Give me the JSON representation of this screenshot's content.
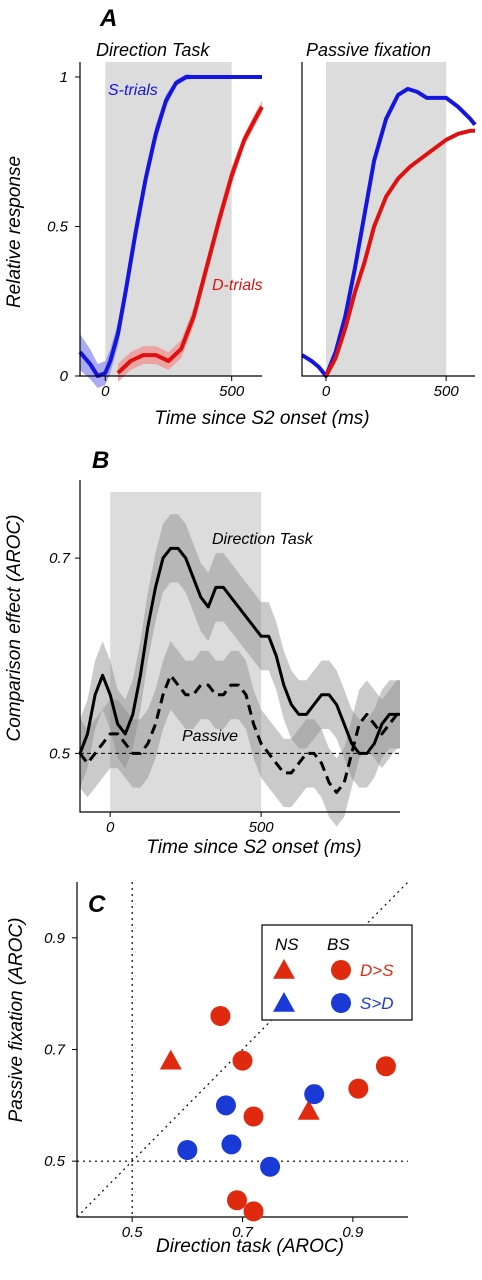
{
  "chart_data": [
    {
      "panel": "A",
      "type": "line",
      "title": "Direction Task",
      "xlabel": "Time since S2 onset  (ms)",
      "ylabel": "Relative response",
      "xlim": [
        -100,
        620
      ],
      "ylim": [
        0,
        1.05
      ],
      "xticks": [
        0,
        500
      ],
      "xtick_labels": [
        "0",
        "500"
      ],
      "yticks": [
        0,
        0.5,
        1
      ],
      "ytick_labels": [
        "0",
        "0.5",
        "1"
      ],
      "shaded_interval": [
        0,
        500
      ],
      "series": [
        {
          "name": "S-trials",
          "color": "#1515e0",
          "band_color": "#8f8ff0",
          "x": [
            -100,
            -60,
            -30,
            0,
            20,
            50,
            80,
            120,
            160,
            200,
            240,
            280,
            320,
            360,
            400,
            450,
            500,
            560,
            620
          ],
          "y": [
            0.08,
            0.04,
            0.0,
            0.01,
            0.05,
            0.14,
            0.28,
            0.48,
            0.66,
            0.81,
            0.92,
            0.98,
            1.0,
            1.0,
            1.0,
            1.0,
            1.0,
            1.0,
            1.0
          ],
          "band": [
            0.06,
            0.05,
            0.04,
            0.04,
            0.04,
            0.04,
            0.04,
            0.04,
            0.03,
            0.03,
            0.02,
            0.01,
            0.01,
            0.005,
            0.005,
            0.005,
            0.005,
            0.005,
            0.005
          ]
        },
        {
          "name": "D-trials",
          "color": "#e01010",
          "band_color": "#f09090",
          "x": [
            50,
            100,
            150,
            200,
            250,
            300,
            350,
            400,
            450,
            500,
            550,
            600,
            620
          ],
          "y": [
            0.01,
            0.05,
            0.07,
            0.07,
            0.05,
            0.09,
            0.2,
            0.36,
            0.52,
            0.67,
            0.79,
            0.87,
            0.9
          ],
          "band": [
            0.03,
            0.03,
            0.03,
            0.03,
            0.03,
            0.03,
            0.03,
            0.03,
            0.03,
            0.03,
            0.02,
            0.02,
            0.02
          ]
        }
      ]
    },
    {
      "panel": "A",
      "type": "line",
      "title": "Passive fixation",
      "xlim": [
        -100,
        620
      ],
      "ylim": [
        0,
        1.05
      ],
      "xticks": [
        0,
        500
      ],
      "xtick_labels": [
        "0",
        "500"
      ],
      "shaded_interval": [
        0,
        500
      ],
      "series": [
        {
          "color": "#1515e0",
          "x": [
            -100,
            -60,
            -30,
            0,
            40,
            80,
            120,
            160,
            200,
            250,
            300,
            340,
            380,
            420,
            460,
            500,
            550,
            600,
            620
          ],
          "y": [
            0.07,
            0.05,
            0.03,
            0.0,
            0.08,
            0.2,
            0.36,
            0.54,
            0.72,
            0.86,
            0.94,
            0.96,
            0.95,
            0.93,
            0.93,
            0.93,
            0.9,
            0.86,
            0.84
          ]
        },
        {
          "color": "#e01010",
          "x": [
            0,
            40,
            80,
            120,
            160,
            200,
            250,
            300,
            350,
            400,
            450,
            500,
            550,
            600,
            620
          ],
          "y": [
            0.0,
            0.06,
            0.16,
            0.28,
            0.38,
            0.5,
            0.6,
            0.66,
            0.7,
            0.73,
            0.76,
            0.79,
            0.81,
            0.82,
            0.82
          ]
        }
      ]
    },
    {
      "panel": "B",
      "type": "line",
      "xlabel": "Time since S2 onset  (ms)",
      "ylabel": "Comparison effect (AROC)",
      "xlim": [
        -100,
        960
      ],
      "ylim": [
        0.44,
        0.78
      ],
      "xticks": [
        0,
        500
      ],
      "xtick_labels": [
        "0",
        "500"
      ],
      "yticks": [
        0.5,
        0.7
      ],
      "ytick_labels": [
        "0.5",
        "0.7"
      ],
      "shaded_interval": [
        0,
        500
      ],
      "reference_line": 0.5,
      "series": [
        {
          "name": "Direction Task",
          "style": "solid",
          "x": [
            -100,
            -75,
            -50,
            -25,
            0,
            25,
            50,
            75,
            100,
            125,
            150,
            175,
            200,
            225,
            250,
            275,
            300,
            325,
            350,
            375,
            400,
            425,
            450,
            475,
            500,
            525,
            550,
            575,
            600,
            625,
            650,
            675,
            700,
            725,
            750,
            775,
            800,
            825,
            850,
            875,
            900,
            925,
            950,
            960
          ],
          "y": [
            0.5,
            0.52,
            0.56,
            0.58,
            0.56,
            0.53,
            0.52,
            0.54,
            0.58,
            0.63,
            0.67,
            0.7,
            0.71,
            0.71,
            0.7,
            0.68,
            0.66,
            0.65,
            0.67,
            0.67,
            0.66,
            0.65,
            0.64,
            0.63,
            0.62,
            0.62,
            0.6,
            0.57,
            0.55,
            0.54,
            0.54,
            0.55,
            0.56,
            0.56,
            0.55,
            0.53,
            0.51,
            0.5,
            0.5,
            0.51,
            0.53,
            0.54,
            0.54,
            0.54
          ],
          "band": 0.035
        },
        {
          "name": "Passive",
          "style": "dashed",
          "x": [
            -100,
            -75,
            -50,
            -25,
            0,
            25,
            50,
            75,
            100,
            125,
            150,
            175,
            200,
            225,
            250,
            275,
            300,
            325,
            350,
            375,
            400,
            425,
            450,
            475,
            500,
            525,
            550,
            575,
            600,
            625,
            650,
            675,
            700,
            725,
            750,
            775,
            800,
            825,
            850,
            875,
            900,
            925,
            950,
            960
          ],
          "y": [
            0.5,
            0.49,
            0.5,
            0.51,
            0.52,
            0.52,
            0.51,
            0.5,
            0.5,
            0.51,
            0.53,
            0.56,
            0.58,
            0.57,
            0.56,
            0.56,
            0.57,
            0.57,
            0.56,
            0.56,
            0.57,
            0.57,
            0.56,
            0.53,
            0.51,
            0.5,
            0.49,
            0.48,
            0.48,
            0.49,
            0.5,
            0.5,
            0.49,
            0.47,
            0.46,
            0.47,
            0.5,
            0.53,
            0.54,
            0.53,
            0.52,
            0.53,
            0.54,
            0.54
          ],
          "band": 0.035
        }
      ]
    },
    {
      "panel": "C",
      "type": "scatter",
      "xlabel": "Direction task  (AROC)",
      "ylabel": "Passive fixation  (AROC)",
      "xlim": [
        0.4,
        1.0
      ],
      "ylim": [
        0.4,
        1.0
      ],
      "xticks": [
        0.5,
        0.7,
        0.9
      ],
      "xtick_labels": [
        "0.5",
        "0.7",
        "0.9"
      ],
      "yticks": [
        0.5,
        0.7,
        0.9
      ],
      "ytick_labels": [
        "0.5",
        "0.7",
        "0.9"
      ],
      "reference_lines": {
        "x": 0.5,
        "y": 0.5,
        "diagonal": true
      },
      "legend": {
        "placement": "top-right",
        "column_headers": [
          "NS",
          "BS"
        ],
        "rows": [
          {
            "label": "D>S",
            "color": "#e02a10"
          },
          {
            "label": "S>D",
            "color": "#1a3ad8"
          }
        ]
      },
      "points": [
        {
          "x": 0.66,
          "y": 0.76,
          "shape": "circle",
          "color": "#e02a10"
        },
        {
          "x": 0.7,
          "y": 0.68,
          "shape": "circle",
          "color": "#e02a10"
        },
        {
          "x": 0.72,
          "y": 0.58,
          "shape": "circle",
          "color": "#e02a10"
        },
        {
          "x": 0.91,
          "y": 0.63,
          "shape": "circle",
          "color": "#e02a10"
        },
        {
          "x": 0.96,
          "y": 0.67,
          "shape": "circle",
          "color": "#e02a10"
        },
        {
          "x": 0.69,
          "y": 0.43,
          "shape": "circle",
          "color": "#e02a10"
        },
        {
          "x": 0.72,
          "y": 0.41,
          "shape": "circle",
          "color": "#e02a10"
        },
        {
          "x": 0.57,
          "y": 0.68,
          "shape": "triangle",
          "color": "#e02a10"
        },
        {
          "x": 0.82,
          "y": 0.59,
          "shape": "triangle",
          "color": "#e02a10"
        },
        {
          "x": 0.67,
          "y": 0.6,
          "shape": "circle",
          "color": "#1a3ad8"
        },
        {
          "x": 0.83,
          "y": 0.62,
          "shape": "circle",
          "color": "#1a3ad8"
        },
        {
          "x": 0.6,
          "y": 0.52,
          "shape": "circle",
          "color": "#1a3ad8"
        },
        {
          "x": 0.68,
          "y": 0.53,
          "shape": "circle",
          "color": "#1a3ad8"
        },
        {
          "x": 0.75,
          "y": 0.49,
          "shape": "circle",
          "color": "#1a3ad8"
        }
      ]
    }
  ],
  "panel_labels": [
    "A",
    "B",
    "C"
  ]
}
